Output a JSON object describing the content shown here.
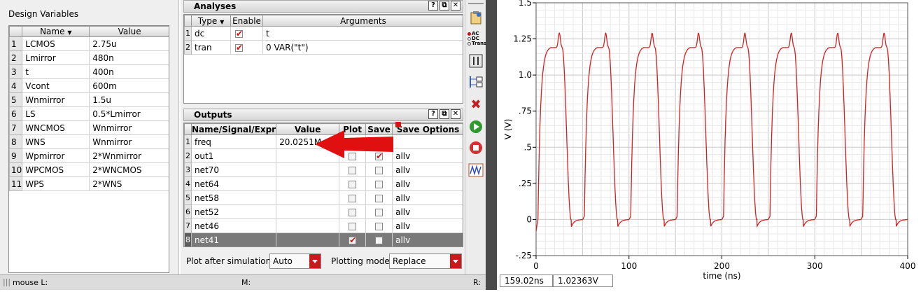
{
  "design_variables": {
    "title": "Design Variables",
    "columns": [
      "Name",
      "Value"
    ],
    "rows": [
      {
        "idx": "1",
        "name": "LCMOS",
        "value": "2.75u"
      },
      {
        "idx": "2",
        "name": "Lmirror",
        "value": "480n"
      },
      {
        "idx": "3",
        "name": "t",
        "value": "400n"
      },
      {
        "idx": "4",
        "name": "Vcont",
        "value": "600m"
      },
      {
        "idx": "5",
        "name": "Wnmirror",
        "value": "1.5u"
      },
      {
        "idx": "6",
        "name": "LS",
        "value": "0.5*Lmirror"
      },
      {
        "idx": "7",
        "name": "WNCMOS",
        "value": "Wnmirror"
      },
      {
        "idx": "8",
        "name": "WNS",
        "value": "Wnmirror"
      },
      {
        "idx": "9",
        "name": "Wpmirror",
        "value": "2*Wnmirror"
      },
      {
        "idx": "10",
        "name": "WPCMOS",
        "value": "2*WNCMOS"
      },
      {
        "idx": "11",
        "name": "WPS",
        "value": "2*WNS"
      }
    ]
  },
  "analyses": {
    "title": "Analyses",
    "columns": [
      "Type",
      "Enable",
      "Arguments"
    ],
    "rows": [
      {
        "idx": "1",
        "type": "dc",
        "enabled": true,
        "args": "t"
      },
      {
        "idx": "2",
        "type": "tran",
        "enabled": true,
        "args": "0 VAR(\"t\")"
      }
    ]
  },
  "outputs": {
    "title": "Outputs",
    "columns": [
      "Name/Signal/Expr",
      "Value",
      "Plot",
      "Save",
      "Save Options"
    ],
    "rows": [
      {
        "idx": "1",
        "name": "freq",
        "value": "20.0251M",
        "plot": null,
        "save": null,
        "opt": ""
      },
      {
        "idx": "2",
        "name": "out1",
        "value": "",
        "plot": false,
        "save": true,
        "opt": "allv"
      },
      {
        "idx": "3",
        "name": "net70",
        "value": "",
        "plot": false,
        "save": false,
        "opt": "allv"
      },
      {
        "idx": "4",
        "name": "net64",
        "value": "",
        "plot": false,
        "save": false,
        "opt": "allv"
      },
      {
        "idx": "5",
        "name": "net58",
        "value": "",
        "plot": false,
        "save": false,
        "opt": "allv"
      },
      {
        "idx": "6",
        "name": "net52",
        "value": "",
        "plot": false,
        "save": false,
        "opt": "allv"
      },
      {
        "idx": "7",
        "name": "net46",
        "value": "",
        "plot": false,
        "save": false,
        "opt": "allv"
      },
      {
        "idx": "8",
        "name": "net41",
        "value": "",
        "plot": true,
        "save": false,
        "opt": "allv",
        "selected": true
      }
    ]
  },
  "pane_buttons": [
    "?",
    "⧉",
    "✕"
  ],
  "controls": {
    "plot_after_label": "Plot after simulation:",
    "plot_after_value": "Auto",
    "plotting_mode_label": "Plotting mode:",
    "plotting_mode_value": "Replace"
  },
  "toolbar": {
    "ac_label": "AC",
    "dc_label": "DC",
    "trans_label": "Trans"
  },
  "status": {
    "mouse_l": "mouse L:",
    "m": "M:",
    "r": "R:"
  },
  "readout": {
    "x": "159.02ns",
    "y": "1.02363V"
  },
  "chart_data": {
    "type": "line",
    "xlabel": "time (ns)",
    "ylabel": "V (V)",
    "xlim": [
      0,
      400
    ],
    "ylim": [
      -0.25,
      1.5
    ],
    "xticks": [
      "0",
      "100",
      "200",
      "300",
      "400"
    ],
    "yticks": [
      "-.25",
      "0",
      ".25",
      ".5",
      ".75",
      "1.0",
      "1.25",
      "1.5"
    ],
    "grid": true,
    "line_color": "#d42020",
    "period_ns": 49.94,
    "high_level": 1.19,
    "low_level": 0.0,
    "overshoot_peak": 1.29,
    "series": [
      {
        "values_description": "square-like oscillation between ~0 V and ~1.2 V with ~1.29 V overshoot spikes"
      }
    ]
  },
  "annotation_arrow_color": "#e01010"
}
